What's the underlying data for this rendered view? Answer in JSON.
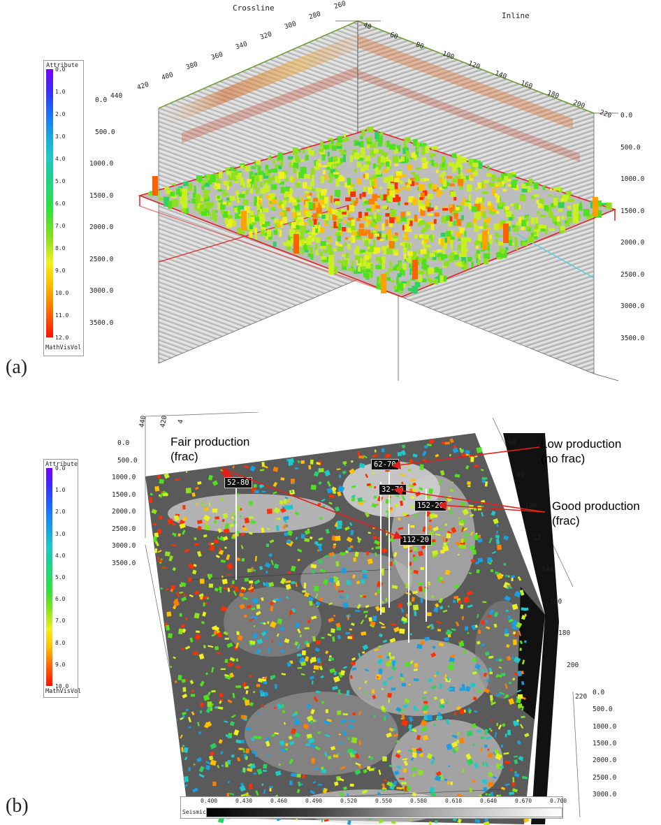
{
  "panel_a": {
    "label": "(a)",
    "axis_crossline_title": "Crossline",
    "axis_inline_title": "Inline",
    "crossline_ticks": [
      "420",
      "400",
      "380",
      "360",
      "340",
      "320",
      "300",
      "280",
      "260"
    ],
    "inline_ticks": [
      "40",
      "60",
      "80",
      "100",
      "120",
      "140",
      "160",
      "180",
      "200",
      "220"
    ],
    "depth_ticks_left": [
      "0.0",
      "500.0",
      "1000.0",
      "1500.0",
      "2000.0",
      "2500.0",
      "3000.0",
      "3500.0"
    ],
    "depth_ticks_right": [
      "0.0",
      "500.0",
      "1000.0",
      "1500.0",
      "2000.0",
      "2500.0",
      "3000.0",
      "3500.0"
    ],
    "corner_label": "440",
    "colorbar": {
      "title": "Attribute",
      "ticks": [
        "0.0",
        "1.0",
        "2.0",
        "3.0",
        "4.0",
        "5.0",
        "6.0",
        "7.0",
        "8.0",
        "9.0",
        "10.0",
        "11.0",
        "12.0"
      ],
      "footer": "MathVisVol"
    }
  },
  "panel_b": {
    "label": "(b)",
    "top_ticks": [
      "440",
      "420",
      "4"
    ],
    "inline_ticks": [
      "60",
      "80",
      "100",
      "12_",
      "140",
      "160",
      "180",
      "200",
      "220"
    ],
    "depth_ticks_left": [
      "0.0",
      "500.0",
      "1000.0",
      "1500.0",
      "2000.0",
      "2500.0",
      "3000.0",
      "3500.0"
    ],
    "depth_ticks_right": [
      "0.0",
      "500.0",
      "1000.0",
      "1500.0",
      "2000.0",
      "2500.0",
      "3000.0"
    ],
    "colorbar": {
      "title": "Attribute",
      "ticks": [
        "0.0",
        "1.0",
        "2.0",
        "3.0",
        "4.0",
        "5.0",
        "6.0",
        "7.0",
        "8.0",
        "9.0",
        "10.0"
      ],
      "footer": "MathVisVol"
    },
    "seismic_bar": {
      "title": "Seismic",
      "ticks": [
        "0.400",
        "0.430",
        "0.460",
        "0.490",
        "0.520",
        "0.550",
        "0.580",
        "0.610",
        "0.640",
        "0.670",
        "0.700"
      ]
    },
    "annotations": {
      "fair_line1": "Fair production",
      "fair_line2": "(frac)",
      "low_line1": "Low production",
      "low_line2": "(no frac)",
      "good_line1": "Good production",
      "good_line2": "(frac)"
    },
    "wells": [
      "52-80",
      "62-70",
      "32-70",
      "152-20",
      "112-20"
    ],
    "colors": {
      "arrow": "#e0201b",
      "bar_high": "#ff2000",
      "bar_low": "#7a00ff"
    }
  }
}
